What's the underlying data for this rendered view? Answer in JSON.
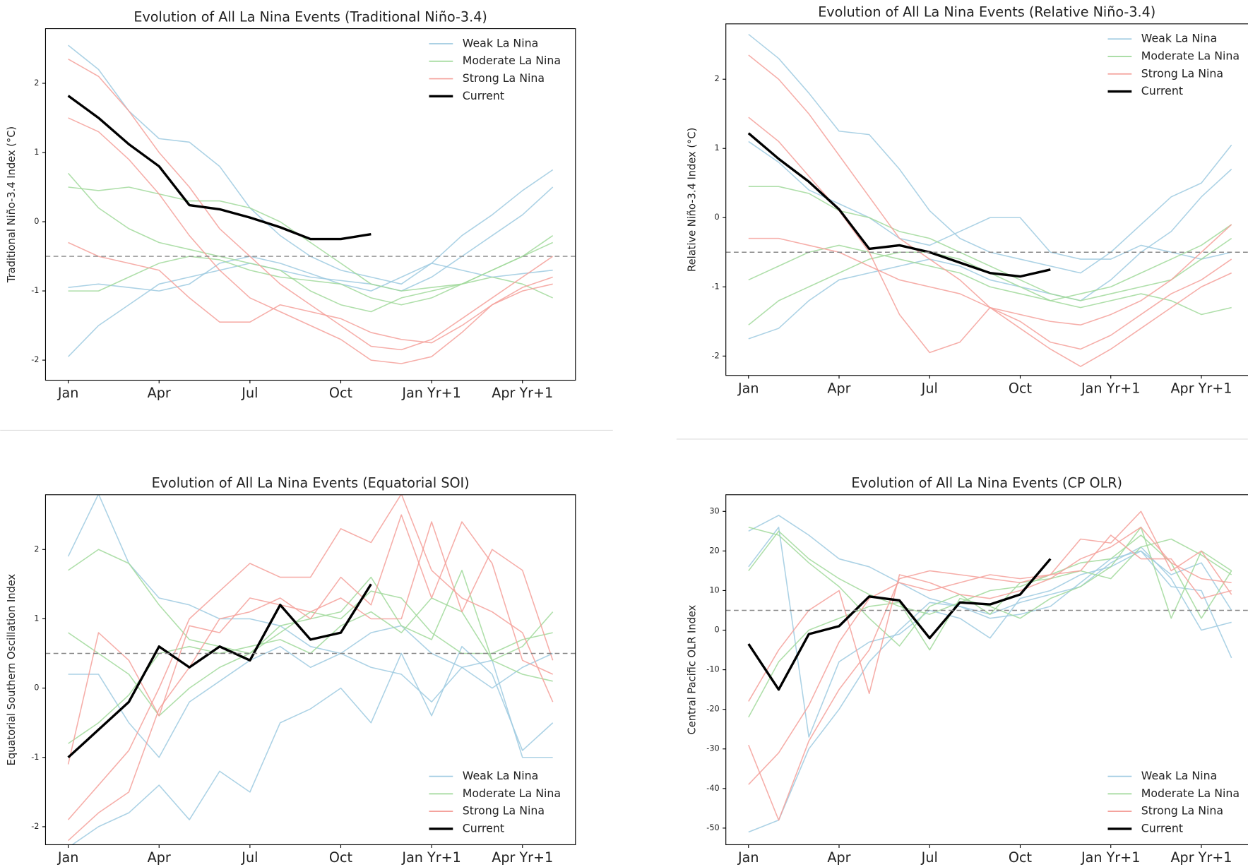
{
  "chart_data": [
    {
      "type": "line",
      "title": "Evolution of All La Nina Events (Traditional Niño-3.4)",
      "y_label": "Traditional Niño-3.4 Index (°C)",
      "categories": [
        "Jan",
        null,
        null,
        "Apr",
        null,
        null,
        "Jul",
        null,
        null,
        "Oct",
        null,
        null,
        "Jan Yr+1",
        null,
        null,
        "Apr Yr+1",
        null
      ],
      "ylim": [
        -2.29,
        2.79
      ],
      "yticks": [
        -2,
        -1,
        0,
        1,
        2
      ],
      "hline": -0.5,
      "legend": "upper right",
      "series": [
        {
          "name": "Weak La Nina",
          "color": "#9ecae1",
          "lines": [
            [
              2.55,
              2.2,
              1.6,
              1.2,
              1.15,
              0.8,
              0.2,
              -0.2,
              -0.5,
              -0.7,
              -0.8,
              -0.9,
              -0.6,
              -0.2,
              0.1,
              0.45,
              0.75
            ],
            [
              -1.95,
              -1.5,
              -1.2,
              -0.9,
              -0.8,
              -0.7,
              -0.6,
              -0.7,
              -0.8,
              -0.85,
              -0.9,
              -1.0,
              -0.8,
              -0.5,
              -0.2,
              0.1,
              0.5
            ],
            [
              -0.95,
              -0.9,
              -0.95,
              -1.0,
              -0.9,
              -0.6,
              -0.5,
              -0.6,
              -0.75,
              -0.9,
              -1.0,
              -0.8,
              -0.6,
              -0.7,
              -0.8,
              -0.75,
              -0.7
            ]
          ]
        },
        {
          "name": "Moderate La Nina",
          "color": "#a1d99b",
          "lines": [
            [
              0.5,
              0.45,
              0.5,
              0.4,
              0.3,
              0.3,
              0.2,
              0.0,
              -0.3,
              -0.6,
              -0.9,
              -1.0,
              -0.95,
              -0.9,
              -0.7,
              -0.5,
              -0.3
            ],
            [
              -1.0,
              -1.0,
              -0.8,
              -0.6,
              -0.5,
              -0.55,
              -0.7,
              -0.8,
              -0.85,
              -0.9,
              -1.1,
              -1.2,
              -1.1,
              -0.9,
              -0.8,
              -0.9,
              -1.1
            ],
            [
              0.7,
              0.2,
              -0.1,
              -0.3,
              -0.4,
              -0.5,
              -0.6,
              -0.7,
              -1.0,
              -1.2,
              -1.3,
              -1.1,
              -1.0,
              -0.9,
              -0.7,
              -0.5,
              -0.2
            ]
          ]
        },
        {
          "name": "Strong La Nina",
          "color": "#f4a09a",
          "lines": [
            [
              2.35,
              2.1,
              1.6,
              1.0,
              0.5,
              -0.1,
              -0.5,
              -0.9,
              -1.2,
              -1.5,
              -1.8,
              -1.85,
              -1.7,
              -1.4,
              -1.1,
              -0.8,
              -0.5
            ],
            [
              1.5,
              1.3,
              0.9,
              0.4,
              -0.2,
              -0.7,
              -1.1,
              -1.3,
              -1.5,
              -1.7,
              -2.0,
              -2.05,
              -1.95,
              -1.6,
              -1.2,
              -0.95,
              -0.8
            ],
            [
              -0.3,
              -0.5,
              -0.6,
              -0.7,
              -1.1,
              -1.45,
              -1.45,
              -1.2,
              -1.3,
              -1.4,
              -1.6,
              -1.7,
              -1.75,
              -1.5,
              -1.2,
              -1.0,
              -0.9
            ]
          ]
        },
        {
          "name": "Current",
          "color": "#000000",
          "lines": [
            [
              1.82,
              1.5,
              1.12,
              0.8,
              0.24,
              0.18,
              0.06,
              -0.08,
              -0.25,
              -0.25,
              -0.18,
              null,
              null,
              null,
              null,
              null,
              null
            ]
          ]
        }
      ]
    },
    {
      "type": "line",
      "title": "Evolution of All La Nina Events (Relative Niño-3.4)",
      "y_label": "Relative Niño-3.4 Index (°C)",
      "categories": [
        "Jan",
        null,
        null,
        "Apr",
        null,
        null,
        "Jul",
        null,
        null,
        "Oct",
        null,
        null,
        "Jan Yr+1",
        null,
        null,
        "Apr Yr+1",
        null
      ],
      "ylim": [
        -2.28,
        2.8
      ],
      "yticks": [
        -2,
        -1,
        0,
        1,
        2
      ],
      "hline": -0.5,
      "legend": "upper right",
      "series": [
        {
          "name": "Weak La Nina",
          "color": "#9ecae1",
          "lines": [
            [
              2.65,
              2.3,
              1.8,
              1.25,
              1.2,
              0.7,
              0.1,
              -0.3,
              -0.5,
              -0.6,
              -0.7,
              -0.8,
              -0.5,
              -0.1,
              0.3,
              0.5,
              1.05
            ],
            [
              -1.75,
              -1.6,
              -1.2,
              -0.9,
              -0.8,
              -0.7,
              -0.6,
              -0.7,
              -0.9,
              -1.0,
              -1.1,
              -1.2,
              -0.9,
              -0.5,
              -0.2,
              0.3,
              0.7
            ],
            [
              1.1,
              0.8,
              0.4,
              0.2,
              0.0,
              -0.3,
              -0.4,
              -0.2,
              0.0,
              0.0,
              -0.5,
              -0.6,
              -0.6,
              -0.4,
              -0.5,
              -0.6,
              -0.5
            ]
          ]
        },
        {
          "name": "Moderate La Nina",
          "color": "#a1d99b",
          "lines": [
            [
              0.45,
              0.45,
              0.35,
              0.1,
              0.0,
              -0.2,
              -0.3,
              -0.5,
              -0.7,
              -0.9,
              -1.1,
              -1.2,
              -1.1,
              -1.0,
              -0.9,
              -0.6,
              -0.3
            ],
            [
              -0.9,
              -0.7,
              -0.5,
              -0.4,
              -0.5,
              -0.6,
              -0.7,
              -0.8,
              -1.0,
              -1.1,
              -1.2,
              -1.3,
              -1.2,
              -1.1,
              -1.2,
              -1.4,
              -1.3
            ],
            [
              -1.55,
              -1.2,
              -1.0,
              -0.8,
              -0.6,
              -0.5,
              -0.5,
              -0.6,
              -0.8,
              -1.0,
              -1.2,
              -1.1,
              -1.0,
              -0.8,
              -0.6,
              -0.4,
              -0.1
            ]
          ]
        },
        {
          "name": "Strong La Nina",
          "color": "#f4a09a",
          "lines": [
            [
              2.35,
              2.0,
              1.5,
              0.9,
              0.3,
              -0.3,
              -0.6,
              -0.9,
              -1.3,
              -1.5,
              -1.8,
              -1.9,
              -1.7,
              -1.4,
              -1.1,
              -0.9,
              -0.6
            ],
            [
              1.45,
              1.1,
              0.6,
              0.1,
              -0.5,
              -1.4,
              -1.95,
              -1.8,
              -1.3,
              -1.6,
              -1.9,
              -2.15,
              -1.9,
              -1.6,
              -1.3,
              -1.0,
              -0.8
            ],
            [
              -0.3,
              -0.3,
              -0.4,
              -0.5,
              -0.7,
              -0.9,
              -1.0,
              -1.1,
              -1.3,
              -1.4,
              -1.5,
              -1.55,
              -1.4,
              -1.2,
              -0.9,
              -0.5,
              -0.1
            ]
          ]
        },
        {
          "name": "Current",
          "color": "#000000",
          "lines": [
            [
              1.22,
              0.85,
              0.52,
              0.12,
              -0.45,
              -0.4,
              -0.5,
              -0.65,
              -0.8,
              -0.85,
              -0.75,
              null,
              null,
              null,
              null,
              null,
              null
            ]
          ]
        }
      ]
    },
    {
      "type": "line",
      "title": "Evolution of All La Nina Events (Equatorial SOI)",
      "y_label": "Equatorial Southern Oscillation Index",
      "categories": [
        "Jan",
        null,
        null,
        "Apr",
        null,
        null,
        "Jul",
        null,
        null,
        "Oct",
        null,
        null,
        "Jan Yr+1",
        null,
        null,
        "Apr Yr+1",
        null
      ],
      "ylim": [
        -2.26,
        2.79
      ],
      "yticks": [
        -2,
        -1,
        0,
        1,
        2
      ],
      "hline": 0.5,
      "legend": "lower right",
      "series": [
        {
          "name": "Weak La Nina",
          "color": "#9ecae1",
          "lines": [
            [
              1.9,
              2.8,
              1.8,
              1.3,
              1.2,
              1.0,
              1.0,
              0.9,
              0.6,
              0.5,
              0.3,
              0.2,
              -0.2,
              0.3,
              0.4,
              -1.0,
              -1.0
            ],
            [
              -2.3,
              -2.0,
              -1.8,
              -1.4,
              -1.9,
              -1.2,
              -1.5,
              -0.5,
              -0.3,
              0.0,
              -0.5,
              0.5,
              -0.4,
              0.6,
              0.2,
              -0.9,
              -0.5
            ],
            [
              0.2,
              0.2,
              -0.5,
              -1.0,
              -0.2,
              0.1,
              0.4,
              0.6,
              0.3,
              0.5,
              0.8,
              0.9,
              0.5,
              0.3,
              0.0,
              0.3,
              0.5
            ]
          ]
        },
        {
          "name": "Moderate La Nina",
          "color": "#a1d99b",
          "lines": [
            [
              1.7,
              2.0,
              1.8,
              1.2,
              0.7,
              0.6,
              0.5,
              0.9,
              1.0,
              1.1,
              1.6,
              0.9,
              0.7,
              1.7,
              0.4,
              0.6,
              1.1
            ],
            [
              0.8,
              0.5,
              0.2,
              -0.4,
              0.0,
              0.3,
              0.5,
              0.8,
              1.1,
              1.0,
              1.4,
              1.3,
              0.8,
              0.5,
              0.5,
              0.7,
              0.8
            ],
            [
              -0.8,
              -0.5,
              -0.1,
              0.5,
              0.6,
              0.5,
              0.6,
              0.7,
              0.5,
              0.9,
              1.1,
              0.8,
              1.3,
              1.1,
              0.4,
              0.2,
              0.1
            ]
          ]
        },
        {
          "name": "Strong La Nina",
          "color": "#f4a09a",
          "lines": [
            [
              -1.9,
              -1.4,
              -0.9,
              0.0,
              1.0,
              1.4,
              1.8,
              1.6,
              1.6,
              2.3,
              2.1,
              2.8,
              1.7,
              1.3,
              1.1,
              0.8,
              -0.2
            ],
            [
              -2.2,
              -1.8,
              -1.5,
              -0.3,
              0.3,
              1.0,
              1.1,
              1.3,
              1.0,
              1.6,
              1.2,
              2.5,
              1.3,
              2.4,
              1.8,
              0.4,
              0.2
            ],
            [
              -1.1,
              0.8,
              0.4,
              -0.4,
              0.9,
              0.8,
              1.3,
              1.2,
              1.1,
              1.3,
              1.0,
              1.0,
              2.4,
              1.1,
              2.0,
              1.7,
              0.4
            ]
          ]
        },
        {
          "name": "Current",
          "color": "#000000",
          "lines": [
            [
              -1.0,
              -0.6,
              -0.2,
              0.6,
              0.3,
              0.6,
              0.4,
              1.2,
              0.7,
              0.8,
              1.5,
              null,
              null,
              null,
              null,
              null,
              null
            ]
          ]
        }
      ]
    },
    {
      "type": "line",
      "title": "Evolution of All La Nina Events (CP OLR)",
      "y_label": "Central Pacific OLR Index",
      "categories": [
        "Jan",
        null,
        null,
        "Apr",
        null,
        null,
        "Jul",
        null,
        null,
        "Oct",
        null,
        null,
        "Jan Yr+1",
        null,
        null,
        "Apr Yr+1",
        null
      ],
      "ylim": [
        -54.2,
        34.2
      ],
      "yticks": [
        -50,
        -40,
        -30,
        -20,
        -10,
        0,
        10,
        20,
        30
      ],
      "hline": 5,
      "legend": "lower right",
      "series": [
        {
          "name": "Weak La Nina",
          "color": "#9ecae1",
          "lines": [
            [
              25,
              29,
              24,
              18,
              16,
              12,
              8,
              6,
              4,
              7,
              9,
              11,
              17,
              21,
              13,
              0,
              2
            ],
            [
              -51,
              -48,
              -30,
              -20,
              -8,
              0,
              7,
              6,
              3,
              4,
              6,
              12,
              18,
              20,
              11,
              10,
              -7
            ],
            [
              16,
              26,
              -27,
              -8,
              -3,
              -1,
              5,
              3,
              -2,
              8,
              10,
              14,
              16,
              20,
              14,
              17,
              5
            ]
          ]
        },
        {
          "name": "Moderate La Nina",
          "color": "#a1d99b",
          "lines": [
            [
              15,
              25,
              18,
              13,
              9,
              6,
              4,
              7,
              10,
              11,
              14,
              17,
              18,
              24,
              17,
              3,
              15
            ],
            [
              26,
              24,
              17,
              11,
              3,
              -4,
              6,
              9,
              4,
              12,
              13,
              15,
              13,
              21,
              23,
              19,
              14
            ],
            [
              -22,
              -8,
              0,
              3,
              6,
              7,
              -5,
              8,
              6,
              3,
              8,
              11,
              16,
              26,
              3,
              20,
              15
            ]
          ]
        },
        {
          "name": "Strong La Nina",
          "color": "#f4a09a",
          "lines": [
            [
              -29,
              -48,
              -28,
              -15,
              -5,
              13,
              15,
              14,
              13,
              12,
              14,
              23,
              22,
              30,
              15,
              20,
              9
            ],
            [
              -18,
              -5,
              5,
              10,
              -16,
              14,
              12,
              9,
              8,
              10,
              13,
              18,
              21,
              26,
              17,
              13,
              12
            ],
            [
              -39,
              -31,
              -19,
              -3,
              8,
              12,
              10,
              12,
              14,
              13,
              14,
              15,
              24,
              18,
              18,
              8,
              10
            ]
          ]
        },
        {
          "name": "Current",
          "color": "#000000",
          "lines": [
            [
              -3.5,
              -15,
              -1,
              1,
              8.5,
              7.5,
              -2,
              7,
              6.5,
              9,
              18,
              null,
              null,
              null,
              null,
              null,
              null
            ]
          ]
        }
      ]
    }
  ]
}
